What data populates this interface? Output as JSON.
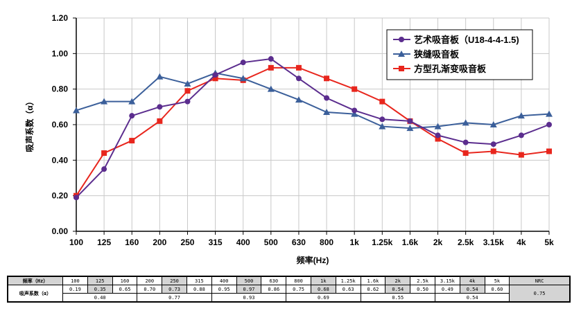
{
  "chart_data": {
    "type": "line",
    "categories": [
      "100",
      "125",
      "160",
      "200",
      "250",
      "315",
      "400",
      "500",
      "630",
      "800",
      "1k",
      "1.25k",
      "1.6k",
      "2k",
      "2.5k",
      "3.15k",
      "4k",
      "5k"
    ],
    "xlabel": "频率(Hz)",
    "ylabel": "吸声系数（α）",
    "ylim": [
      0,
      1.2
    ],
    "yticks": [
      "0.00",
      "0.20",
      "0.40",
      "0.60",
      "0.80",
      "1.00",
      "1.20"
    ],
    "grid": true,
    "legend_position": "top-right",
    "series": [
      {
        "name": "艺术吸音板（U18-4-4-1.5)",
        "color": "#5b2d8e",
        "marker": "circle",
        "values": [
          0.19,
          0.35,
          0.65,
          0.7,
          0.73,
          0.88,
          0.95,
          0.97,
          0.86,
          0.75,
          0.68,
          0.63,
          0.62,
          0.54,
          0.5,
          0.49,
          0.54,
          0.6
        ]
      },
      {
        "name": "狭缝吸音板",
        "color": "#3b5f9a",
        "marker": "triangle",
        "values": [
          0.68,
          0.73,
          0.73,
          0.87,
          0.83,
          0.89,
          0.86,
          0.8,
          0.74,
          0.67,
          0.66,
          0.59,
          0.58,
          0.59,
          0.61,
          0.6,
          0.65,
          0.66
        ]
      },
      {
        "name": "方型孔渐变吸音板",
        "color": "#e8261d",
        "marker": "square",
        "values": [
          0.2,
          0.44,
          0.51,
          0.62,
          0.79,
          0.86,
          0.85,
          0.92,
          0.92,
          0.86,
          0.8,
          0.73,
          0.62,
          0.52,
          0.44,
          0.45,
          0.43,
          0.45
        ]
      }
    ]
  },
  "table": {
    "freq_label": "频率（Hz）",
    "coef_label": "吸声系数（α）",
    "freqs": [
      "100",
      "125",
      "160",
      "200",
      "250",
      "315",
      "400",
      "500",
      "630",
      "800",
      "1k",
      "1.25k",
      "1.6k",
      "2k",
      "2.5k",
      "3.15k",
      "4k",
      "5k"
    ],
    "values": [
      "0.19",
      "0.35",
      "0.65",
      "0.70",
      "0.73",
      "0.88",
      "0.95",
      "0.97",
      "0.86",
      "0.75",
      "0.68",
      "0.63",
      "0.62",
      "0.54",
      "0.50",
      "0.49",
      "0.54",
      "0.60"
    ],
    "group_averages": [
      "0.40",
      "0.77",
      "0.93",
      "0.69",
      "0.55",
      "0.54"
    ],
    "nrc_label": "NRC",
    "nrc_value": "0.75"
  }
}
